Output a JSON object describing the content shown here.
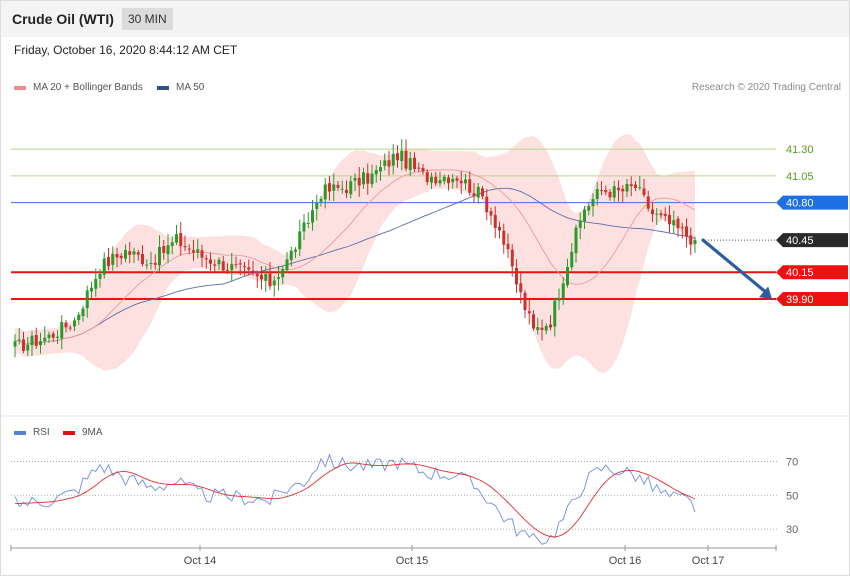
{
  "header": {
    "title": "Crude Oil (WTI)",
    "interval": "30 MIN"
  },
  "datetime": "Friday, October 16, 2020 8:44:12 AM CET",
  "legend": {
    "bb_label": "MA 20 + Bollinger Bands",
    "ma50_label": "MA 50",
    "credit": "Research © 2020 Trading Central"
  },
  "rsi_legend": {
    "rsi_label": "RSI",
    "ma9_label": "9MA"
  },
  "colors": {
    "bull": "#2b9a2b",
    "bear": "#d0302c",
    "band": "#fde0e0",
    "ma20": "#f19a9a",
    "ma50": "#5b6fa6",
    "green_level": "#b7d58a",
    "blue_level": "#3f73d8",
    "red_level": "#ee1111",
    "arrow": "#2c5d9e",
    "rsi": "#6f8ee0",
    "rsi_ma": "#e03030"
  },
  "chart_data": [
    {
      "type": "candlestick",
      "x_labels": [
        "Oct 14",
        "Oct 15",
        "Oct 16",
        "Oct 17"
      ],
      "y_range": [
        38.9,
        41.75
      ],
      "levels": [
        {
          "value": 41.3,
          "label": "41.30",
          "kind": "resistance-minor"
        },
        {
          "value": 41.05,
          "label": "41.05",
          "kind": "resistance-minor"
        },
        {
          "value": 40.8,
          "label": "40.80",
          "kind": "pivot"
        },
        {
          "value": 40.45,
          "label": "40.45",
          "kind": "last-price"
        },
        {
          "value": 40.15,
          "label": "40.15",
          "kind": "support"
        },
        {
          "value": 39.9,
          "label": "39.90",
          "kind": "support"
        }
      ],
      "anchors": [
        {
          "i": 0,
          "p": 39.45
        },
        {
          "i": 8,
          "p": 39.55
        },
        {
          "i": 14,
          "p": 39.7
        },
        {
          "i": 20,
          "p": 40.2
        },
        {
          "i": 26,
          "p": 40.35
        },
        {
          "i": 32,
          "p": 40.25
        },
        {
          "i": 38,
          "p": 40.45
        },
        {
          "i": 44,
          "p": 40.3
        },
        {
          "i": 52,
          "p": 40.18
        },
        {
          "i": 60,
          "p": 40.05
        },
        {
          "i": 64,
          "p": 40.25
        },
        {
          "i": 68,
          "p": 40.55
        },
        {
          "i": 72,
          "p": 40.9
        },
        {
          "i": 78,
          "p": 40.95
        },
        {
          "i": 84,
          "p": 41.05
        },
        {
          "i": 90,
          "p": 41.25
        },
        {
          "i": 96,
          "p": 41.05
        },
        {
          "i": 104,
          "p": 41.05
        },
        {
          "i": 110,
          "p": 40.85
        },
        {
          "i": 114,
          "p": 40.55
        },
        {
          "i": 118,
          "p": 40.05
        },
        {
          "i": 122,
          "p": 39.6
        },
        {
          "i": 126,
          "p": 39.7
        },
        {
          "i": 130,
          "p": 40.25
        },
        {
          "i": 134,
          "p": 40.75
        },
        {
          "i": 138,
          "p": 40.92
        },
        {
          "i": 142,
          "p": 40.9
        },
        {
          "i": 146,
          "p": 40.95
        },
        {
          "i": 150,
          "p": 40.7
        },
        {
          "i": 154,
          "p": 40.6
        },
        {
          "i": 158,
          "p": 40.5
        },
        {
          "i": 160,
          "p": 40.45
        }
      ],
      "projection": {
        "from": 40.45,
        "to": 39.9
      }
    },
    {
      "type": "line",
      "name": "RSI",
      "y_ticks": [
        70,
        50,
        30
      ],
      "y_range": [
        20,
        75
      ],
      "reference_lines": [
        70,
        50,
        30
      ],
      "anchors": [
        {
          "i": 0,
          "v": 45
        },
        {
          "i": 8,
          "v": 47
        },
        {
          "i": 14,
          "v": 52
        },
        {
          "i": 20,
          "v": 68
        },
        {
          "i": 26,
          "v": 60
        },
        {
          "i": 32,
          "v": 55
        },
        {
          "i": 38,
          "v": 58
        },
        {
          "i": 44,
          "v": 50
        },
        {
          "i": 52,
          "v": 49
        },
        {
          "i": 60,
          "v": 47
        },
        {
          "i": 64,
          "v": 54
        },
        {
          "i": 68,
          "v": 58
        },
        {
          "i": 72,
          "v": 71
        },
        {
          "i": 78,
          "v": 68
        },
        {
          "i": 84,
          "v": 67
        },
        {
          "i": 90,
          "v": 70
        },
        {
          "i": 96,
          "v": 64
        },
        {
          "i": 104,
          "v": 62
        },
        {
          "i": 110,
          "v": 52
        },
        {
          "i": 114,
          "v": 40
        },
        {
          "i": 118,
          "v": 30
        },
        {
          "i": 122,
          "v": 23
        },
        {
          "i": 126,
          "v": 25
        },
        {
          "i": 130,
          "v": 40
        },
        {
          "i": 134,
          "v": 58
        },
        {
          "i": 138,
          "v": 66
        },
        {
          "i": 142,
          "v": 65
        },
        {
          "i": 146,
          "v": 62
        },
        {
          "i": 150,
          "v": 55
        },
        {
          "i": 154,
          "v": 49
        },
        {
          "i": 158,
          "v": 47
        },
        {
          "i": 160,
          "v": 43
        }
      ]
    }
  ]
}
